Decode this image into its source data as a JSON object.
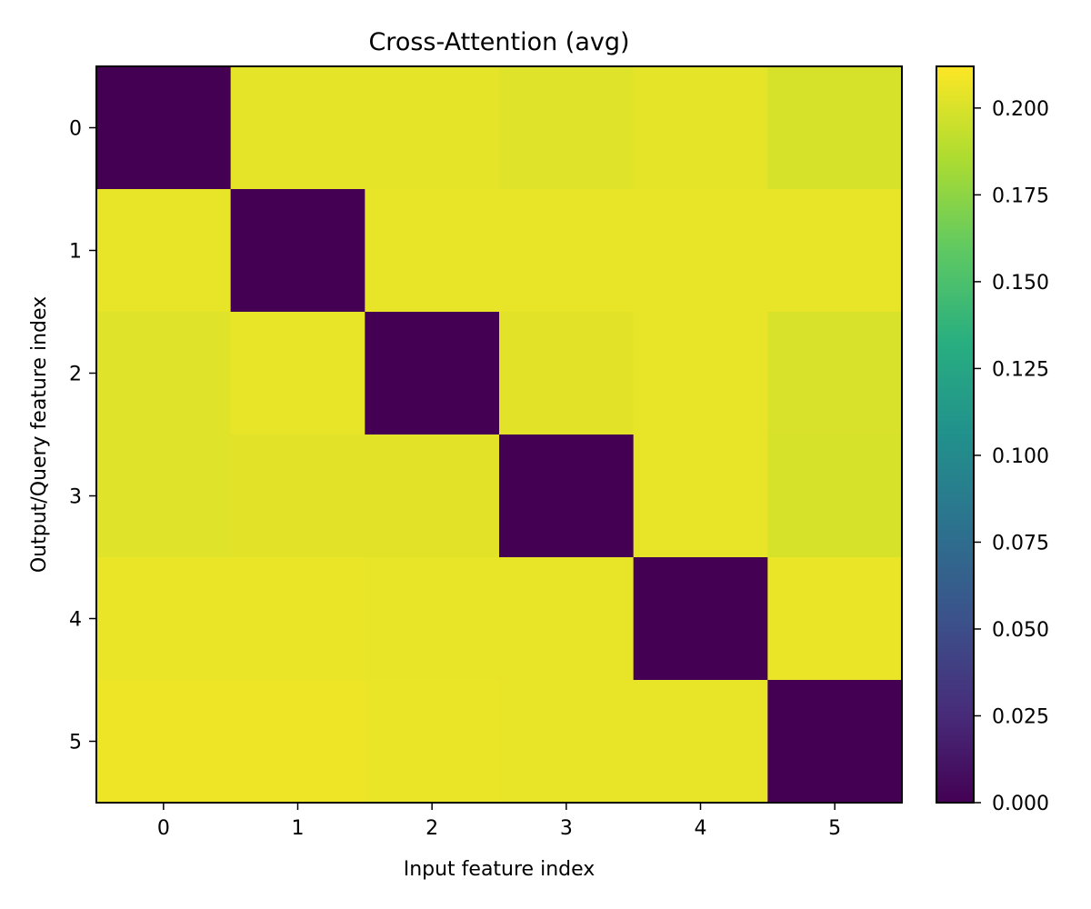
{
  "chart_data": {
    "type": "heatmap",
    "title": "Cross-Attention (avg)",
    "xlabel": "Input feature index",
    "ylabel": "Output/Query feature index",
    "x_categories": [
      "0",
      "1",
      "2",
      "3",
      "4",
      "5"
    ],
    "y_categories": [
      "0",
      "1",
      "2",
      "3",
      "4",
      "5"
    ],
    "values": [
      [
        0.0,
        0.204,
        0.204,
        0.202,
        0.204,
        0.199
      ],
      [
        0.205,
        0.0,
        0.205,
        0.205,
        0.205,
        0.205
      ],
      [
        0.202,
        0.205,
        0.0,
        0.203,
        0.205,
        0.2
      ],
      [
        0.202,
        0.203,
        0.203,
        0.0,
        0.205,
        0.199
      ],
      [
        0.206,
        0.206,
        0.205,
        0.205,
        0.0,
        0.206
      ],
      [
        0.207,
        0.207,
        0.206,
        0.205,
        0.205,
        0.0
      ]
    ],
    "colorbar": {
      "min": 0.0,
      "max": 0.212,
      "ticks": [
        0.0,
        0.025,
        0.05,
        0.075,
        0.1,
        0.125,
        0.15,
        0.175,
        0.2
      ],
      "tick_labels": [
        "0.000",
        "0.025",
        "0.050",
        "0.075",
        "0.100",
        "0.125",
        "0.150",
        "0.175",
        "0.200"
      ],
      "colormap": "viridis"
    },
    "grid": false
  }
}
